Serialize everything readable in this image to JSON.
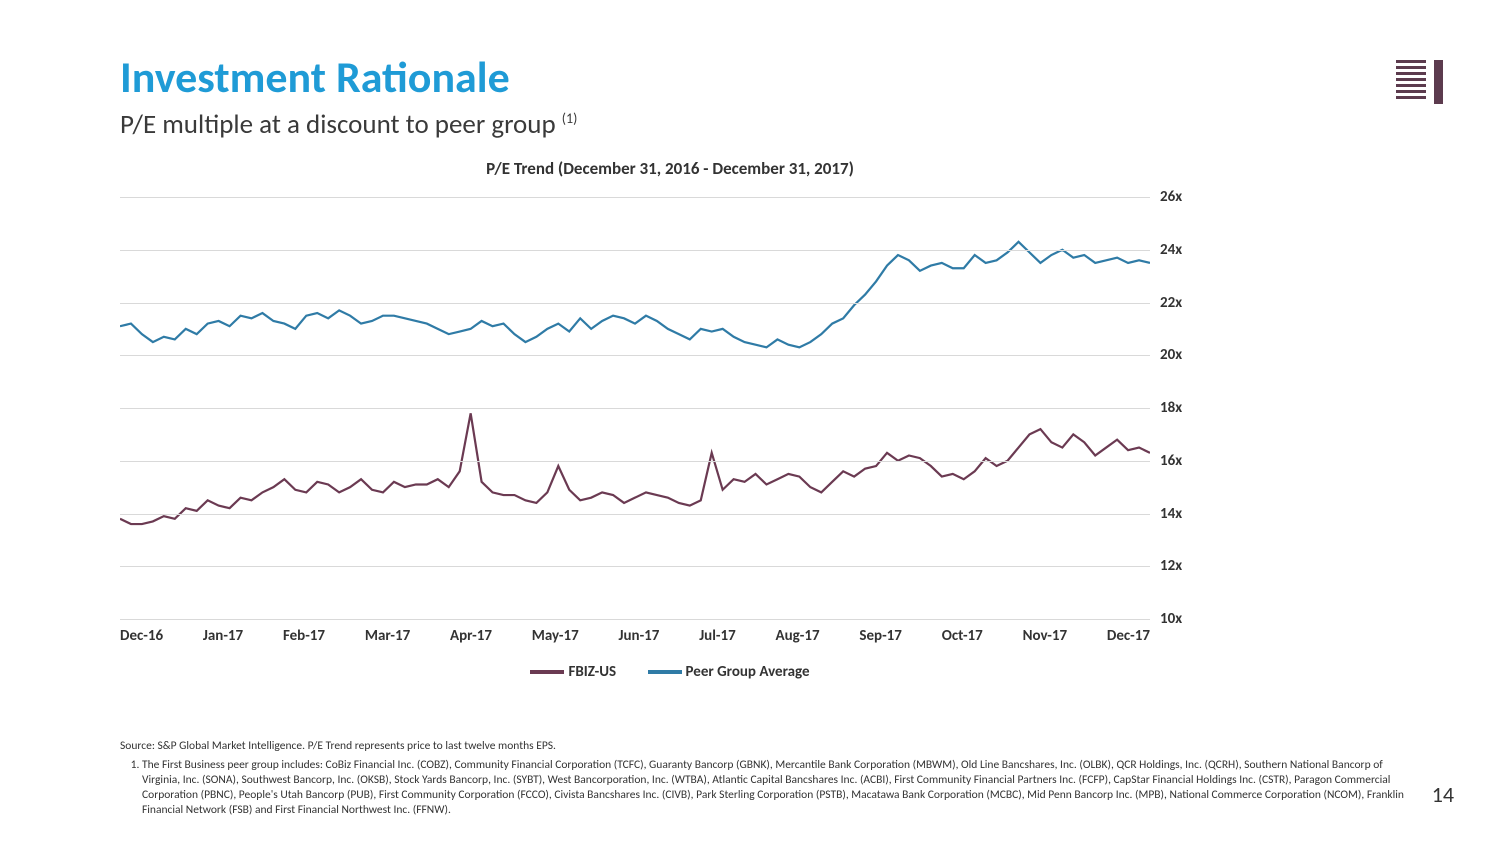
{
  "header": {
    "title": "Investment Rationale",
    "subtitle_pre": "P/E multiple at a discount to peer group ",
    "subtitle_sup": "(1)",
    "title_color": "#1f9bd6"
  },
  "logo": {
    "color": "#5c3b4e"
  },
  "chart": {
    "type": "line",
    "title": "P/E Trend (December 31, 2016 - December 31, 2017)",
    "ylim": [
      10,
      26
    ],
    "ytick_step": 2,
    "ytick_suffix": "x",
    "yticks": [
      26,
      24,
      22,
      20,
      18,
      16,
      14,
      12,
      10
    ],
    "xlabels": [
      "Dec-16",
      "Jan-17",
      "Feb-17",
      "Mar-17",
      "Apr-17",
      "May-17",
      "Jun-17",
      "Jul-17",
      "Aug-17",
      "Sep-17",
      "Oct-17",
      "Nov-17",
      "Dec-17"
    ],
    "grid_color": "#d9d9d9",
    "background_color": "#ffffff",
    "line_width": 2.2,
    "series": [
      {
        "name": "FBIZ-US",
        "color": "#6b3a52",
        "values": [
          13.8,
          13.6,
          13.6,
          13.7,
          13.9,
          13.8,
          14.2,
          14.1,
          14.5,
          14.3,
          14.2,
          14.6,
          14.5,
          14.8,
          15.0,
          15.3,
          14.9,
          14.8,
          15.2,
          15.1,
          14.8,
          15.0,
          15.3,
          14.9,
          14.8,
          15.2,
          15.0,
          15.1,
          15.1,
          15.3,
          15.0,
          15.6,
          17.8,
          15.2,
          14.8,
          14.7,
          14.7,
          14.5,
          14.4,
          14.8,
          15.8,
          14.9,
          14.5,
          14.6,
          14.8,
          14.7,
          14.4,
          14.6,
          14.8,
          14.7,
          14.6,
          14.4,
          14.3,
          14.5,
          16.3,
          14.9,
          15.3,
          15.2,
          15.5,
          15.1,
          15.3,
          15.5,
          15.4,
          15.0,
          14.8,
          15.2,
          15.6,
          15.4,
          15.7,
          15.8,
          16.3,
          16.0,
          16.2,
          16.1,
          15.8,
          15.4,
          15.5,
          15.3,
          15.6,
          16.1,
          15.8,
          16.0,
          16.5,
          17.0,
          17.2,
          16.7,
          16.5,
          17.0,
          16.7,
          16.2,
          16.5,
          16.8,
          16.4,
          16.5,
          16.3
        ]
      },
      {
        "name": "Peer Group Average",
        "color": "#2f7ba6",
        "values": [
          21.1,
          21.2,
          20.8,
          20.5,
          20.7,
          20.6,
          21.0,
          20.8,
          21.2,
          21.3,
          21.1,
          21.5,
          21.4,
          21.6,
          21.3,
          21.2,
          21.0,
          21.5,
          21.6,
          21.4,
          21.7,
          21.5,
          21.2,
          21.3,
          21.5,
          21.5,
          21.4,
          21.3,
          21.2,
          21.0,
          20.8,
          20.9,
          21.0,
          21.3,
          21.1,
          21.2,
          20.8,
          20.5,
          20.7,
          21.0,
          21.2,
          20.9,
          21.4,
          21.0,
          21.3,
          21.5,
          21.4,
          21.2,
          21.5,
          21.3,
          21.0,
          20.8,
          20.6,
          21.0,
          20.9,
          21.0,
          20.7,
          20.5,
          20.4,
          20.3,
          20.6,
          20.4,
          20.3,
          20.5,
          20.8,
          21.2,
          21.4,
          21.9,
          22.3,
          22.8,
          23.4,
          23.8,
          23.6,
          23.2,
          23.4,
          23.5,
          23.3,
          23.3,
          23.8,
          23.5,
          23.6,
          23.9,
          24.3,
          23.9,
          23.5,
          23.8,
          24.0,
          23.7,
          23.8,
          23.5,
          23.6,
          23.7,
          23.5,
          23.6,
          23.5
        ]
      }
    ],
    "legend": [
      {
        "label": "FBIZ-US",
        "color": "#6b3a52"
      },
      {
        "label": "Peer Group Average",
        "color": "#2f7ba6"
      }
    ]
  },
  "footnotes": {
    "source": "Source: S&P Global Market Intelligence. P/E Trend represents price to last twelve months EPS.",
    "note1": "The First Business peer group includes: CoBiz Financial Inc. (COBZ), Community Financial Corporation (TCFC), Guaranty Bancorp (GBNK), Mercantile Bank Corporation (MBWM), Old Line Bancshares, Inc. (OLBK), QCR Holdings, Inc. (QCRH), Southern National Bancorp of Virginia, Inc. (SONA), Southwest Bancorp, Inc. (OKSB), Stock Yards Bancorp, Inc. (SYBT), West Bancorporation, Inc. (WTBA), Atlantic Capital Bancshares Inc. (ACBI), First Community Financial Partners Inc. (FCFP), CapStar Financial Holdings Inc. (CSTR), Paragon Commercial Corporation (PBNC), People's Utah Bancorp (PUB), First Community Corporation (FCCO), Civista Bancshares Inc. (CIVB), Park Sterling Corporation (PSTB), Macatawa Bank Corporation (MCBC), Mid Penn Bancorp Inc. (MPB), National Commerce Corporation (NCOM), Franklin Financial Network (FSB) and First Financial Northwest Inc. (FFNW)."
  },
  "page_number": "14"
}
